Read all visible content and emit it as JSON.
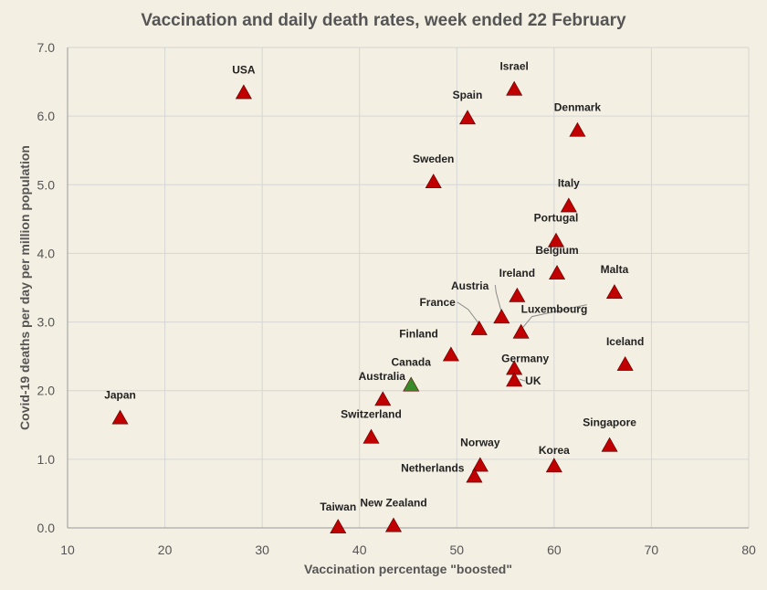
{
  "chart_data": {
    "type": "scatter",
    "title": "Vaccination and daily death rates, week ended 22 February",
    "xlabel": "Vaccination percentage \"boosted\"",
    "ylabel": "Covid-19 deaths per day per million population",
    "xlim": [
      10,
      80
    ],
    "ylim": [
      0,
      7
    ],
    "xticks": [
      "10",
      "20",
      "30",
      "40",
      "50",
      "60",
      "70",
      "80"
    ],
    "yticks": [
      "0.0",
      "1.0",
      "2.0",
      "3.0",
      "4.0",
      "5.0",
      "6.0",
      "7.0"
    ],
    "grid": true,
    "marker": "triangle",
    "colors": {
      "default": "#c00000",
      "highlight": "#3a8a2a",
      "grid": "#d6d6d6",
      "axis": "#999999"
    },
    "points": [
      {
        "label": "USA",
        "x": 28.1,
        "y": 6.33
      },
      {
        "label": "Israel",
        "x": 55.9,
        "y": 6.38
      },
      {
        "label": "Spain",
        "x": 51.1,
        "y": 5.96
      },
      {
        "label": "Denmark",
        "x": 62.4,
        "y": 5.78
      },
      {
        "label": "Sweden",
        "x": 47.6,
        "y": 5.03
      },
      {
        "label": "Italy",
        "x": 61.5,
        "y": 4.68
      },
      {
        "label": "Portugal",
        "x": 60.2,
        "y": 4.17
      },
      {
        "label": "Belgium",
        "x": 60.3,
        "y": 3.7
      },
      {
        "label": "Malta",
        "x": 66.2,
        "y": 3.42
      },
      {
        "label": "Ireland",
        "x": 56.2,
        "y": 3.37
      },
      {
        "label": "Austria",
        "x": 54.6,
        "y": 3.06
      },
      {
        "label": "France",
        "x": 52.3,
        "y": 2.89
      },
      {
        "label": "Luxembourg",
        "x": 56.6,
        "y": 2.84
      },
      {
        "label": "Finland",
        "x": 49.4,
        "y": 2.51
      },
      {
        "label": "Iceland",
        "x": 67.3,
        "y": 2.37
      },
      {
        "label": "Germany",
        "x": 55.9,
        "y": 2.31
      },
      {
        "label": "UK",
        "x": 55.9,
        "y": 2.14
      },
      {
        "label": "Canada",
        "x": 45.3,
        "y": 2.07,
        "highlight": true
      },
      {
        "label": "Australia",
        "x": 42.4,
        "y": 1.86
      },
      {
        "label": "Japan",
        "x": 15.4,
        "y": 1.59
      },
      {
        "label": "Switzerland",
        "x": 41.2,
        "y": 1.31
      },
      {
        "label": "Singapore",
        "x": 65.7,
        "y": 1.19
      },
      {
        "label": "Norway",
        "x": 52.4,
        "y": 0.9
      },
      {
        "label": "Korea",
        "x": 60.0,
        "y": 0.89
      },
      {
        "label": "Netherlands",
        "x": 51.8,
        "y": 0.74
      },
      {
        "label": "Taiwan",
        "x": 37.8,
        "y": 0.0
      },
      {
        "label": "New Zealand",
        "x": 43.5,
        "y": 0.02
      }
    ]
  }
}
